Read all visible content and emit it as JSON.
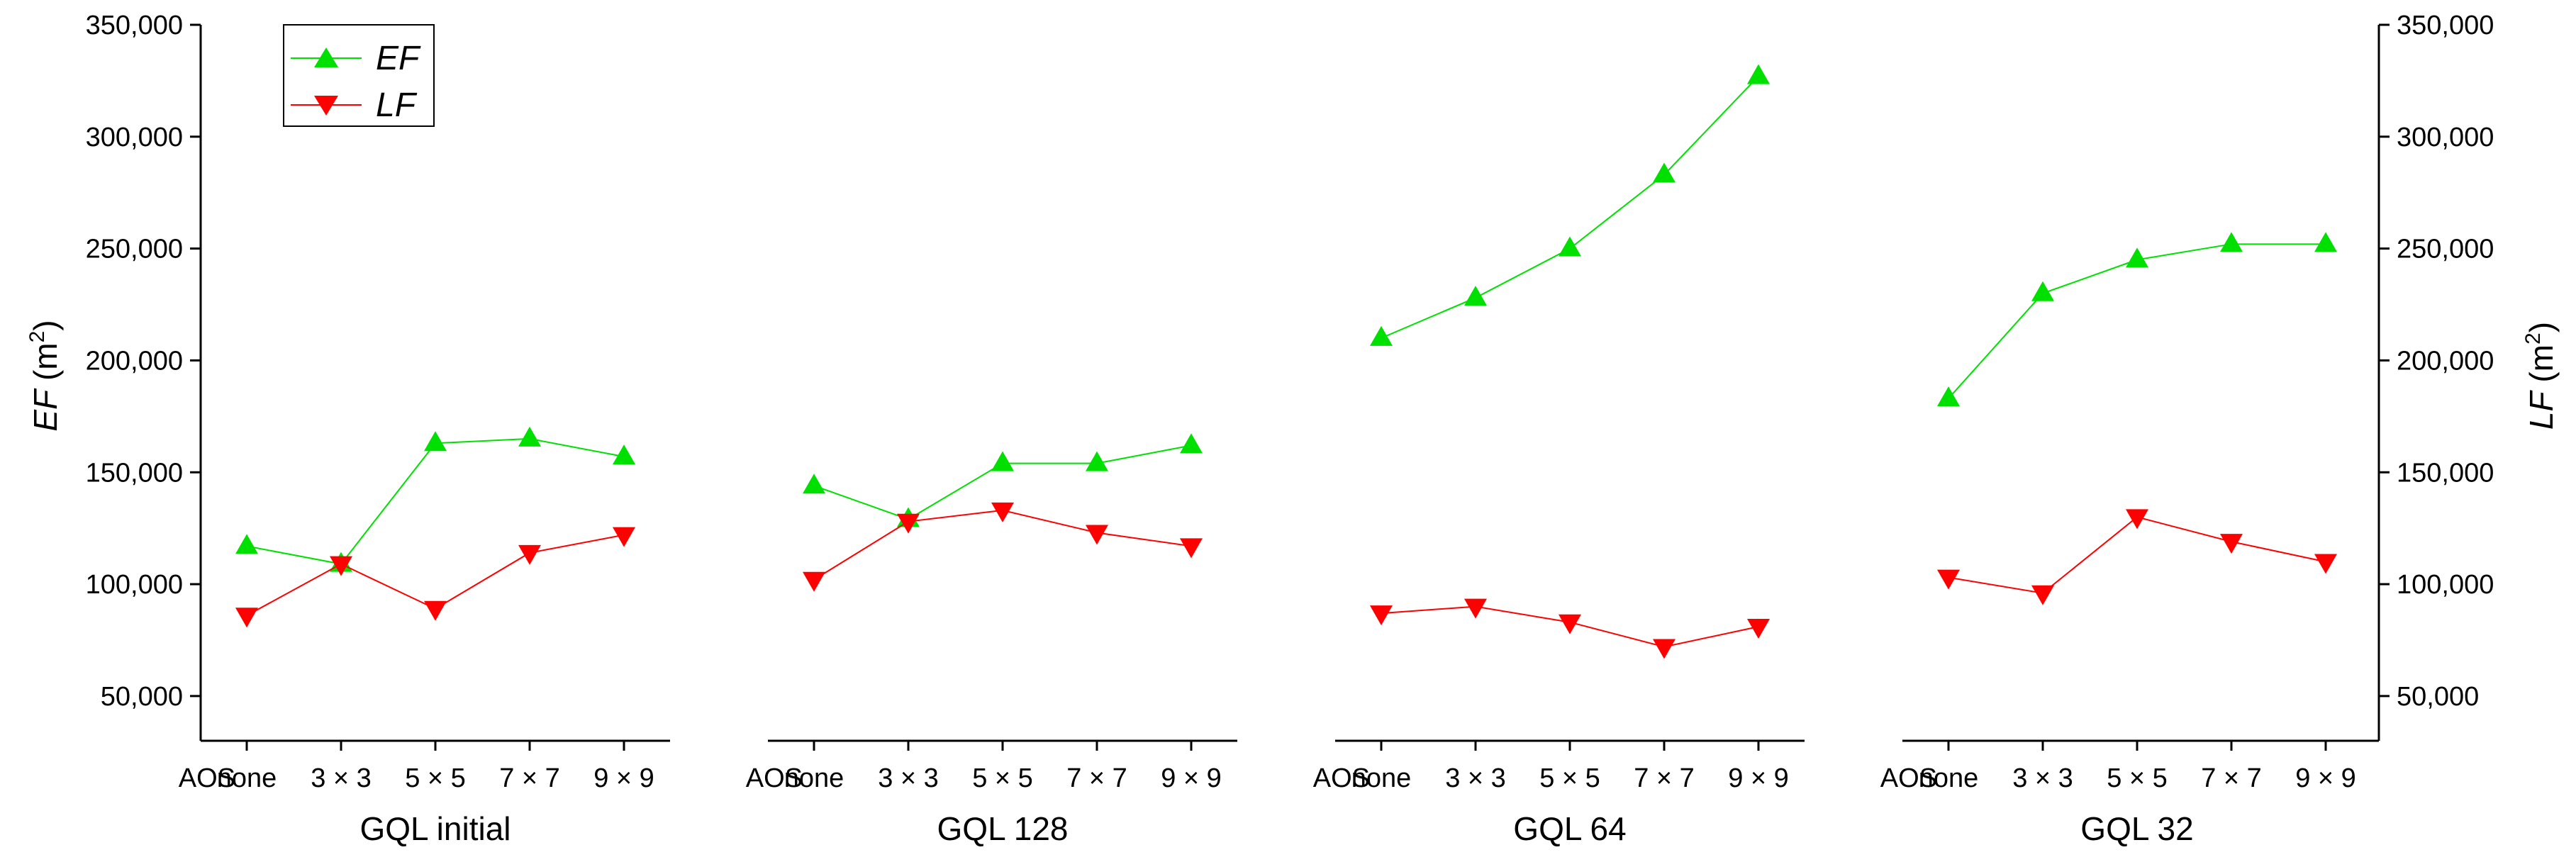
{
  "chart_data": {
    "type": "line",
    "y_left_label": {
      "italic": "EF",
      "unit": " (m",
      "sup": "2",
      "close": ")"
    },
    "y_right_label": {
      "italic": "LF",
      "unit": " (m",
      "sup": "2",
      "close": ")"
    },
    "ylim": [
      30000,
      350000
    ],
    "y_ticks": [
      50000,
      100000,
      150000,
      200000,
      250000,
      300000,
      350000
    ],
    "y_tick_labels": [
      "50,000",
      "100,000",
      "150,000",
      "200,000",
      "250,000",
      "300,000",
      "350,000"
    ],
    "aos_label": "AOS",
    "categories": [
      "none",
      "3 × 3",
      "5 × 5",
      "7 × 7",
      "9 × 9"
    ],
    "series_styles": {
      "EF": {
        "color": "#00e000",
        "marker": "triangle-up"
      },
      "LF": {
        "color": "#ff0000",
        "marker": "triangle-down"
      }
    },
    "legend": {
      "position": "top-left",
      "entries": [
        "EF",
        "LF"
      ]
    },
    "panels": [
      {
        "title": "GQL initial",
        "series": [
          {
            "name": "EF",
            "values": [
              117000,
              109000,
              163000,
              165000,
              157000
            ]
          },
          {
            "name": "LF",
            "values": [
              86000,
              109000,
              89000,
              114000,
              122000
            ]
          }
        ]
      },
      {
        "title": "GQL 128",
        "series": [
          {
            "name": "EF",
            "values": [
              144000,
              129000,
              154000,
              154000,
              162000
            ]
          },
          {
            "name": "LF",
            "values": [
              102000,
              128000,
              133000,
              123000,
              117000
            ]
          }
        ]
      },
      {
        "title": "GQL 64",
        "series": [
          {
            "name": "EF",
            "values": [
              210000,
              228000,
              250000,
              283000,
              327000
            ]
          },
          {
            "name": "LF",
            "values": [
              87000,
              90000,
              83000,
              72000,
              81000
            ]
          }
        ]
      },
      {
        "title": "GQL 32",
        "series": [
          {
            "name": "EF",
            "values": [
              183000,
              230000,
              245000,
              252000,
              252000
            ]
          },
          {
            "name": "LF",
            "values": [
              103000,
              96000,
              130000,
              119000,
              110000
            ]
          }
        ]
      }
    ]
  }
}
